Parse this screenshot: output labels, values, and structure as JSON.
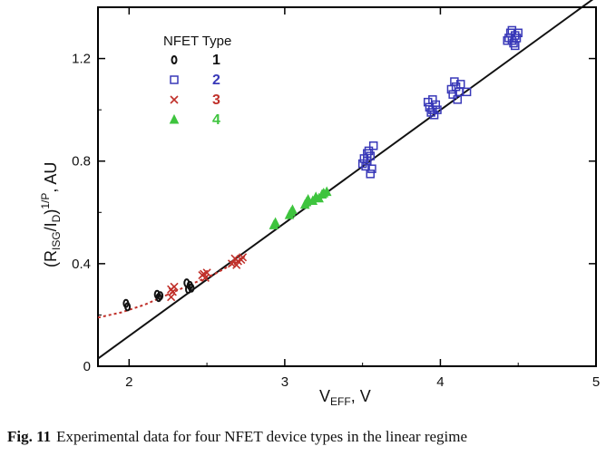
{
  "chart_data": {
    "type": "scatter",
    "xlabel": "V",
    "xlabel_sub": "EFF",
    "xlabel_unit": ", V",
    "ylabel": "(R",
    "ylabel_sub1": "ISG",
    "ylabel_mid": "/I",
    "ylabel_sub2": "D",
    "ylabel_end": ")",
    "ylabel_sup": "1/P",
    "ylabel_unit": ", AU",
    "xlim": [
      1.8,
      5
    ],
    "ylim": [
      0,
      1.4
    ],
    "x_ticks": [
      2,
      3,
      4,
      5
    ],
    "x_tick_labels": [
      "2",
      "3",
      "4",
      "5"
    ],
    "y_ticks": [
      0,
      0.4,
      0.8,
      1.2
    ],
    "y_tick_labels": [
      "0",
      "0.4",
      "0.8",
      "1.2"
    ],
    "legend": {
      "title": "NFET Type",
      "placement": "top-left",
      "entries": [
        {
          "marker": "o",
          "label": "1",
          "color": "#111111"
        },
        {
          "marker": "□",
          "label": "2",
          "color": "#3838b8"
        },
        {
          "marker": "×",
          "label": "3",
          "color": "#c0302a"
        },
        {
          "marker": "Δ",
          "label": "4",
          "color": "#3ec43e"
        }
      ]
    },
    "series": [
      {
        "name": "1",
        "marker": "circle",
        "color": "#111111",
        "points": [
          [
            1.98,
            0.245
          ],
          [
            1.99,
            0.232
          ],
          [
            2.18,
            0.28
          ],
          [
            2.19,
            0.268
          ],
          [
            2.2,
            0.275
          ],
          [
            2.38,
            0.3
          ],
          [
            2.39,
            0.315
          ],
          [
            2.4,
            0.305
          ],
          [
            2.37,
            0.325
          ]
        ]
      },
      {
        "name": "2",
        "marker": "square",
        "color": "#3838b8",
        "points": [
          [
            3.51,
            0.81
          ],
          [
            3.53,
            0.8
          ],
          [
            3.55,
            0.82
          ],
          [
            3.52,
            0.78
          ],
          [
            3.56,
            0.77
          ],
          [
            3.54,
            0.84
          ],
          [
            3.57,
            0.86
          ],
          [
            3.5,
            0.79
          ],
          [
            3.55,
            0.75
          ],
          [
            3.53,
            0.83
          ],
          [
            3.93,
            1.01
          ],
          [
            3.95,
            1.0
          ],
          [
            3.97,
            1.02
          ],
          [
            3.94,
            0.99
          ],
          [
            3.96,
            0.98
          ],
          [
            3.92,
            1.03
          ],
          [
            3.98,
            1.0
          ],
          [
            3.95,
            1.04
          ],
          [
            4.08,
            1.06
          ],
          [
            4.1,
            1.09
          ],
          [
            4.12,
            1.07
          ],
          [
            4.09,
            1.11
          ],
          [
            4.11,
            1.04
          ],
          [
            4.07,
            1.08
          ],
          [
            4.13,
            1.1
          ],
          [
            4.17,
            1.07
          ],
          [
            4.44,
            1.28
          ],
          [
            4.46,
            1.27
          ],
          [
            4.48,
            1.29
          ],
          [
            4.45,
            1.3
          ],
          [
            4.47,
            1.26
          ],
          [
            4.49,
            1.28
          ],
          [
            4.43,
            1.27
          ],
          [
            4.5,
            1.3
          ],
          [
            4.46,
            1.31
          ],
          [
            4.48,
            1.25
          ]
        ]
      },
      {
        "name": "3",
        "marker": "x",
        "color": "#c0302a",
        "points": [
          [
            2.27,
            0.3
          ],
          [
            2.28,
            0.29
          ],
          [
            2.29,
            0.31
          ],
          [
            2.27,
            0.27
          ],
          [
            2.47,
            0.355
          ],
          [
            2.48,
            0.36
          ],
          [
            2.5,
            0.365
          ],
          [
            2.49,
            0.345
          ],
          [
            2.66,
            0.4
          ],
          [
            2.68,
            0.42
          ],
          [
            2.7,
            0.41
          ],
          [
            2.72,
            0.415
          ],
          [
            2.69,
            0.395
          ],
          [
            2.73,
            0.425
          ]
        ]
      },
      {
        "name": "4",
        "marker": "triangle",
        "color": "#3ec43e",
        "points": [
          [
            2.93,
            0.55
          ],
          [
            2.94,
            0.56
          ],
          [
            3.03,
            0.59
          ],
          [
            3.04,
            0.6
          ],
          [
            3.05,
            0.61
          ],
          [
            3.13,
            0.63
          ],
          [
            3.14,
            0.64
          ],
          [
            3.15,
            0.65
          ],
          [
            3.18,
            0.645
          ],
          [
            3.2,
            0.66
          ],
          [
            3.22,
            0.655
          ],
          [
            3.24,
            0.67
          ],
          [
            3.25,
            0.675
          ],
          [
            3.27,
            0.68
          ]
        ]
      }
    ],
    "fit_line": {
      "color": "#111111",
      "x": [
        1.8,
        5.0
      ],
      "y": [
        0.03,
        1.44
      ]
    },
    "dotted_curve": {
      "color": "#c0302a",
      "x": [
        1.8,
        1.95,
        2.1,
        2.25,
        2.4,
        2.55,
        2.7
      ],
      "y": [
        0.19,
        0.21,
        0.24,
        0.28,
        0.32,
        0.36,
        0.41
      ]
    }
  },
  "caption": {
    "label": "Fig. 11",
    "text": "Experimental data for four NFET device types in the linear regime"
  }
}
